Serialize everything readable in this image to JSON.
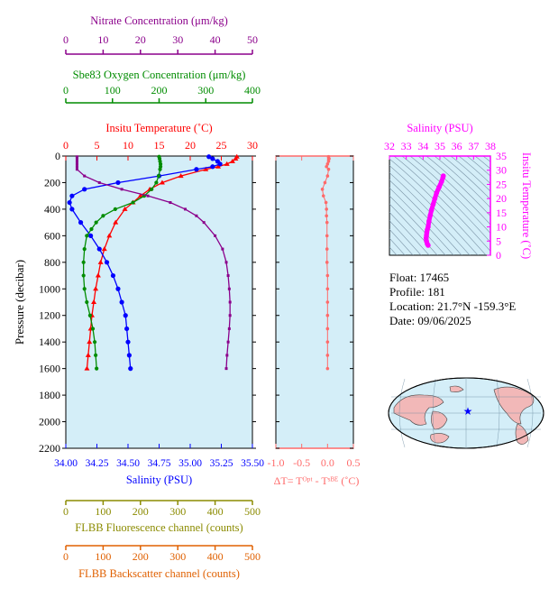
{
  "info": {
    "float": "Float:  17465",
    "profile": "Profile:  181",
    "location": "Location:  21.7°N  -159.3°E",
    "date": "Date:  09/06/2025"
  },
  "colors": {
    "temperature": "#ff0000",
    "salinity": "#0000ff",
    "oxygen": "#008c00",
    "nitrate": "#8b008b",
    "fluorescence": "#8b8b00",
    "backscatter": "#e06000",
    "delta_t": "#ff6a6a",
    "ts": "#ff00ff",
    "panel_bg": "#d4eef8",
    "land": "#f2b8b8"
  },
  "chart_data": [
    {
      "type": "line",
      "name": "profile-panel",
      "y_axis": {
        "label": "Pressure (decibar)",
        "lim": [
          0,
          2200
        ],
        "ticks": [
          "0",
          "200",
          "400",
          "600",
          "800",
          "1000",
          "1200",
          "1400",
          "1600",
          "1800",
          "2000",
          "2200"
        ],
        "inverted": true
      },
      "axes": {
        "nitrate": {
          "label": "Nitrate Concentration (μm/kg)",
          "lim": [
            0,
            50
          ],
          "ticks": [
            "0",
            "10",
            "20",
            "30",
            "40",
            "50"
          ]
        },
        "oxygen": {
          "label": "Sbe83 Oxygen Concentration (μm/kg)",
          "lim": [
            0,
            400
          ],
          "ticks": [
            "0",
            "100",
            "200",
            "300",
            "400"
          ]
        },
        "temperature": {
          "label": "Insitu Temperature (˚C)",
          "lim": [
            0,
            30
          ],
          "ticks": [
            "0",
            "5",
            "10",
            "15",
            "20",
            "25",
            "30"
          ]
        },
        "salinity": {
          "label": "Salinity (PSU)",
          "lim": [
            34.0,
            35.5
          ],
          "ticks": [
            "34.00",
            "34.25",
            "34.50",
            "34.75",
            "35.00",
            "35.25",
            "35.50"
          ]
        },
        "fluorescence": {
          "label": "FLBB Fluorescence channel (counts)",
          "lim": [
            0,
            500
          ],
          "ticks": [
            "0",
            "100",
            "200",
            "300",
            "400",
            "500"
          ]
        },
        "backscatter": {
          "label": "FLBB Backscatter channel (counts)",
          "lim": [
            0,
            500
          ],
          "ticks": [
            "0",
            "100",
            "200",
            "300",
            "400",
            "500"
          ]
        }
      },
      "series": [
        {
          "key": "temperature",
          "p": [
            5,
            20,
            40,
            60,
            80,
            100,
            150,
            200,
            250,
            300,
            350,
            400,
            500,
            600,
            700,
            800,
            900,
            1000,
            1100,
            1200,
            1300,
            1400,
            1500,
            1600
          ],
          "values": [
            27.5,
            27.3,
            26.8,
            25.9,
            24.5,
            22.5,
            18.5,
            15.5,
            13.5,
            12.0,
            10.8,
            9.5,
            8.0,
            7.0,
            6.2,
            5.6,
            5.2,
            4.8,
            4.5,
            4.2,
            4.0,
            3.8,
            3.6,
            3.4
          ]
        },
        {
          "key": "salinity",
          "p": [
            5,
            20,
            40,
            60,
            80,
            100,
            150,
            200,
            250,
            300,
            350,
            400,
            500,
            600,
            700,
            800,
            900,
            1000,
            1100,
            1200,
            1300,
            1400,
            1500,
            1600
          ],
          "values": [
            35.15,
            35.18,
            35.22,
            35.24,
            35.18,
            35.05,
            34.75,
            34.42,
            34.15,
            34.05,
            34.03,
            34.05,
            34.12,
            34.2,
            34.27,
            34.33,
            34.38,
            34.42,
            34.45,
            34.48,
            34.49,
            34.5,
            34.51,
            34.52
          ]
        },
        {
          "key": "oxygen",
          "p": [
            5,
            20,
            40,
            60,
            80,
            100,
            150,
            200,
            250,
            300,
            350,
            400,
            450,
            500,
            550,
            600,
            700,
            800,
            900,
            1000,
            1100,
            1200,
            1300,
            1400,
            1500,
            1600
          ],
          "values": [
            200,
            201,
            202,
            203,
            203,
            202,
            199,
            194,
            184,
            168,
            144,
            106,
            80,
            65,
            55,
            45,
            40,
            38,
            38,
            40,
            45,
            52,
            58,
            62,
            64,
            66
          ]
        },
        {
          "key": "nitrate",
          "p": [
            5,
            20,
            40,
            60,
            80,
            100,
            150,
            200,
            250,
            300,
            350,
            400,
            450,
            500,
            600,
            700,
            800,
            900,
            1000,
            1100,
            1200,
            1300,
            1400,
            1500,
            1600
          ],
          "values": [
            3,
            3,
            3,
            3,
            3,
            3,
            5,
            9,
            15,
            22,
            28,
            32,
            35,
            37,
            40,
            42,
            43,
            43.5,
            43.8,
            44,
            44,
            43.8,
            43.5,
            43.2,
            43
          ]
        }
      ]
    },
    {
      "type": "scatter",
      "name": "delta-t-panel",
      "x_axis": {
        "label": "ΔT= Tᴼᵖᵗ - Tˢᴮᴱ (˚C)",
        "lim": [
          -1.0,
          0.5
        ],
        "ticks": [
          "-1.0",
          "-0.5",
          "0.0",
          "0.5"
        ]
      },
      "y_axis": {
        "lim": [
          0,
          2200
        ],
        "inverted": true
      },
      "p": [
        5,
        20,
        40,
        60,
        80,
        100,
        150,
        200,
        250,
        300,
        350,
        400,
        450,
        500,
        600,
        700,
        800,
        900,
        1000,
        1100,
        1200,
        1300,
        1400,
        1500,
        1600
      ],
      "values": [
        0.02,
        0.03,
        0.02,
        0.0,
        -0.02,
        0.02,
        0.0,
        -0.05,
        -0.1,
        -0.08,
        -0.03,
        -0.02,
        -0.02,
        -0.01,
        -0.01,
        -0.01,
        -0.01,
        0.0,
        0.0,
        0.0,
        0.0,
        0.0,
        0.0,
        0.0,
        0.0
      ]
    },
    {
      "type": "scatter",
      "name": "ts-diagram",
      "x_axis": {
        "label": "Salinity (PSU)",
        "lim": [
          32,
          38
        ],
        "ticks": [
          "32",
          "33",
          "34",
          "35",
          "36",
          "37",
          "38"
        ]
      },
      "y_axis": {
        "label": "Insitu Temperature (˚C)",
        "lim": [
          0,
          35
        ],
        "ticks": [
          "0",
          "5",
          "10",
          "15",
          "20",
          "25",
          "30",
          "35"
        ]
      },
      "salinity": [
        35.2,
        35.18,
        35.1,
        34.95,
        34.8,
        34.7,
        34.6,
        34.5,
        34.42,
        34.35,
        34.3,
        34.25,
        34.22,
        34.2,
        34.18,
        34.2,
        34.25,
        34.3
      ],
      "temperature": [
        28.0,
        27.5,
        26.0,
        24.0,
        22.0,
        20.0,
        18.0,
        16.0,
        14.0,
        12.0,
        10.0,
        9.0,
        8.0,
        7.0,
        6.0,
        5.0,
        4.0,
        3.5
      ]
    }
  ]
}
